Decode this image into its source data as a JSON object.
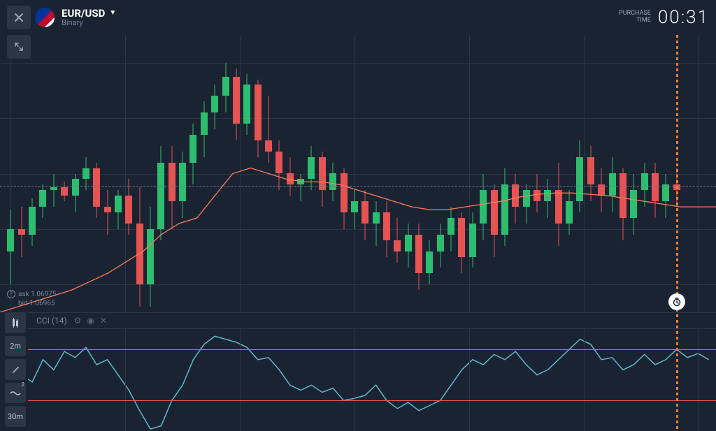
{
  "header": {
    "pair": "EUR/USD",
    "subtype": "Binary",
    "purchase_label_line1": "PURCHASE",
    "purchase_label_line2": "TIME",
    "timer": "00:31"
  },
  "quotes": {
    "ask_label": "ask",
    "ask_value": "1.06975",
    "bid_label": "bid",
    "bid_value": "1.06965"
  },
  "indicator": {
    "label": "CCI (14)",
    "upper_level_y": 0.2,
    "lower_level_y": 0.7,
    "line_color": "#5fb8c9",
    "points": [
      [
        0.0,
        0.54
      ],
      [
        0.015,
        0.32
      ],
      [
        0.03,
        0.45
      ],
      [
        0.045,
        0.52
      ],
      [
        0.06,
        0.3
      ],
      [
        0.075,
        0.4
      ],
      [
        0.09,
        0.22
      ],
      [
        0.105,
        0.28
      ],
      [
        0.12,
        0.18
      ],
      [
        0.135,
        0.35
      ],
      [
        0.15,
        0.3
      ],
      [
        0.165,
        0.45
      ],
      [
        0.18,
        0.6
      ],
      [
        0.195,
        0.8
      ],
      [
        0.21,
        0.98
      ],
      [
        0.225,
        0.95
      ],
      [
        0.24,
        0.7
      ],
      [
        0.255,
        0.55
      ],
      [
        0.27,
        0.3
      ],
      [
        0.285,
        0.15
      ],
      [
        0.3,
        0.07
      ],
      [
        0.315,
        0.1
      ],
      [
        0.33,
        0.13
      ],
      [
        0.345,
        0.18
      ],
      [
        0.36,
        0.3
      ],
      [
        0.375,
        0.28
      ],
      [
        0.39,
        0.4
      ],
      [
        0.405,
        0.55
      ],
      [
        0.42,
        0.6
      ],
      [
        0.435,
        0.55
      ],
      [
        0.45,
        0.62
      ],
      [
        0.465,
        0.58
      ],
      [
        0.48,
        0.7
      ],
      [
        0.495,
        0.68
      ],
      [
        0.51,
        0.65
      ],
      [
        0.525,
        0.55
      ],
      [
        0.54,
        0.7
      ],
      [
        0.555,
        0.78
      ],
      [
        0.57,
        0.72
      ],
      [
        0.585,
        0.8
      ],
      [
        0.6,
        0.75
      ],
      [
        0.615,
        0.7
      ],
      [
        0.63,
        0.55
      ],
      [
        0.645,
        0.4
      ],
      [
        0.66,
        0.3
      ],
      [
        0.675,
        0.35
      ],
      [
        0.69,
        0.25
      ],
      [
        0.705,
        0.3
      ],
      [
        0.72,
        0.22
      ],
      [
        0.735,
        0.35
      ],
      [
        0.75,
        0.45
      ],
      [
        0.765,
        0.4
      ],
      [
        0.78,
        0.3
      ],
      [
        0.795,
        0.2
      ],
      [
        0.81,
        0.1
      ],
      [
        0.825,
        0.15
      ],
      [
        0.84,
        0.3
      ],
      [
        0.855,
        0.28
      ],
      [
        0.87,
        0.4
      ],
      [
        0.885,
        0.35
      ],
      [
        0.9,
        0.25
      ],
      [
        0.915,
        0.35
      ],
      [
        0.93,
        0.3
      ],
      [
        0.945,
        0.2
      ],
      [
        0.96,
        0.28
      ],
      [
        0.975,
        0.24
      ],
      [
        0.99,
        0.3
      ]
    ]
  },
  "toolbar": {
    "chart_type": "candle",
    "timeframe1": "2m",
    "draw": "pencil",
    "wave_badge": "2",
    "timeframe2": "30m"
  },
  "chart": {
    "type": "candlestick",
    "background_color": "#1a2332",
    "grid_color": "#2a3545",
    "up_color": "#2dbd6e",
    "down_color": "#e55353",
    "ma_color": "#ff7b5a",
    "dash_color": "#6a7589",
    "grid_v_x": [
      0.015,
      0.175,
      0.335,
      0.495,
      0.655,
      0.815,
      0.975
    ],
    "grid_h_y": [
      0.1,
      0.3,
      0.5,
      0.7,
      0.9
    ],
    "dash_y": 0.545,
    "time_marker_x": 0.945,
    "time_dot_y": 0.0,
    "ma_points": [
      [
        0.0,
        1.0
      ],
      [
        0.05,
        0.96
      ],
      [
        0.1,
        0.92
      ],
      [
        0.15,
        0.86
      ],
      [
        0.2,
        0.78
      ],
      [
        0.225,
        0.72
      ],
      [
        0.25,
        0.68
      ],
      [
        0.275,
        0.66
      ],
      [
        0.3,
        0.58
      ],
      [
        0.325,
        0.5
      ],
      [
        0.35,
        0.48
      ],
      [
        0.375,
        0.5
      ],
      [
        0.4,
        0.52
      ],
      [
        0.425,
        0.53
      ],
      [
        0.45,
        0.53
      ],
      [
        0.475,
        0.54
      ],
      [
        0.5,
        0.56
      ],
      [
        0.525,
        0.58
      ],
      [
        0.55,
        0.6
      ],
      [
        0.575,
        0.62
      ],
      [
        0.6,
        0.63
      ],
      [
        0.625,
        0.63
      ],
      [
        0.65,
        0.62
      ],
      [
        0.675,
        0.61
      ],
      [
        0.7,
        0.6
      ],
      [
        0.725,
        0.585
      ],
      [
        0.75,
        0.575
      ],
      [
        0.775,
        0.57
      ],
      [
        0.8,
        0.57
      ],
      [
        0.825,
        0.575
      ],
      [
        0.85,
        0.58
      ],
      [
        0.875,
        0.59
      ],
      [
        0.9,
        0.6
      ],
      [
        0.925,
        0.61
      ],
      [
        0.95,
        0.62
      ],
      [
        0.975,
        0.62
      ],
      [
        1.0,
        0.62
      ]
    ],
    "candles": [
      {
        "x": 0.015,
        "o": 0.78,
        "h": 0.63,
        "l": 0.9,
        "c": 0.7,
        "d": "up"
      },
      {
        "x": 0.03,
        "o": 0.7,
        "h": 0.62,
        "l": 0.8,
        "c": 0.72,
        "d": "down"
      },
      {
        "x": 0.045,
        "o": 0.72,
        "h": 0.59,
        "l": 0.76,
        "c": 0.62,
        "d": "up"
      },
      {
        "x": 0.06,
        "o": 0.62,
        "h": 0.54,
        "l": 0.66,
        "c": 0.56,
        "d": "up"
      },
      {
        "x": 0.075,
        "o": 0.56,
        "h": 0.5,
        "l": 0.62,
        "c": 0.55,
        "d": "up"
      },
      {
        "x": 0.09,
        "o": 0.55,
        "h": 0.53,
        "l": 0.6,
        "c": 0.58,
        "d": "down"
      },
      {
        "x": 0.105,
        "o": 0.58,
        "h": 0.5,
        "l": 0.64,
        "c": 0.52,
        "d": "up"
      },
      {
        "x": 0.12,
        "o": 0.52,
        "h": 0.44,
        "l": 0.56,
        "c": 0.48,
        "d": "up"
      },
      {
        "x": 0.135,
        "o": 0.48,
        "h": 0.46,
        "l": 0.66,
        "c": 0.62,
        "d": "down"
      },
      {
        "x": 0.15,
        "o": 0.62,
        "h": 0.56,
        "l": 0.72,
        "c": 0.64,
        "d": "down"
      },
      {
        "x": 0.165,
        "o": 0.64,
        "h": 0.56,
        "l": 0.7,
        "c": 0.58,
        "d": "up"
      },
      {
        "x": 0.18,
        "o": 0.58,
        "h": 0.52,
        "l": 0.72,
        "c": 0.68,
        "d": "down"
      },
      {
        "x": 0.195,
        "o": 0.68,
        "h": 0.55,
        "l": 0.98,
        "c": 0.9,
        "d": "down"
      },
      {
        "x": 0.21,
        "o": 0.9,
        "h": 0.62,
        "l": 0.98,
        "c": 0.7,
        "d": "up"
      },
      {
        "x": 0.225,
        "o": 0.7,
        "h": 0.4,
        "l": 0.74,
        "c": 0.46,
        "d": "up"
      },
      {
        "x": 0.24,
        "o": 0.46,
        "h": 0.4,
        "l": 0.7,
        "c": 0.6,
        "d": "down"
      },
      {
        "x": 0.255,
        "o": 0.6,
        "h": 0.42,
        "l": 0.66,
        "c": 0.46,
        "d": "up"
      },
      {
        "x": 0.27,
        "o": 0.46,
        "h": 0.32,
        "l": 0.54,
        "c": 0.36,
        "d": "up"
      },
      {
        "x": 0.285,
        "o": 0.36,
        "h": 0.24,
        "l": 0.44,
        "c": 0.28,
        "d": "up"
      },
      {
        "x": 0.3,
        "o": 0.28,
        "h": 0.18,
        "l": 0.34,
        "c": 0.22,
        "d": "up"
      },
      {
        "x": 0.315,
        "o": 0.22,
        "h": 0.1,
        "l": 0.28,
        "c": 0.15,
        "d": "up"
      },
      {
        "x": 0.33,
        "o": 0.15,
        "h": 0.12,
        "l": 0.38,
        "c": 0.32,
        "d": "down"
      },
      {
        "x": 0.345,
        "o": 0.32,
        "h": 0.14,
        "l": 0.36,
        "c": 0.18,
        "d": "up"
      },
      {
        "x": 0.36,
        "o": 0.18,
        "h": 0.16,
        "l": 0.44,
        "c": 0.38,
        "d": "down"
      },
      {
        "x": 0.375,
        "o": 0.38,
        "h": 0.22,
        "l": 0.46,
        "c": 0.42,
        "d": "down"
      },
      {
        "x": 0.39,
        "o": 0.42,
        "h": 0.38,
        "l": 0.56,
        "c": 0.5,
        "d": "down"
      },
      {
        "x": 0.405,
        "o": 0.5,
        "h": 0.44,
        "l": 0.58,
        "c": 0.54,
        "d": "down"
      },
      {
        "x": 0.42,
        "o": 0.54,
        "h": 0.5,
        "l": 0.6,
        "c": 0.52,
        "d": "up"
      },
      {
        "x": 0.435,
        "o": 0.52,
        "h": 0.4,
        "l": 0.56,
        "c": 0.44,
        "d": "up"
      },
      {
        "x": 0.45,
        "o": 0.44,
        "h": 0.42,
        "l": 0.62,
        "c": 0.56,
        "d": "down"
      },
      {
        "x": 0.465,
        "o": 0.56,
        "h": 0.46,
        "l": 0.6,
        "c": 0.5,
        "d": "up"
      },
      {
        "x": 0.48,
        "o": 0.5,
        "h": 0.48,
        "l": 0.7,
        "c": 0.64,
        "d": "down"
      },
      {
        "x": 0.495,
        "o": 0.64,
        "h": 0.56,
        "l": 0.7,
        "c": 0.6,
        "d": "up"
      },
      {
        "x": 0.51,
        "o": 0.6,
        "h": 0.56,
        "l": 0.74,
        "c": 0.68,
        "d": "down"
      },
      {
        "x": 0.525,
        "o": 0.68,
        "h": 0.6,
        "l": 0.76,
        "c": 0.64,
        "d": "up"
      },
      {
        "x": 0.54,
        "o": 0.64,
        "h": 0.6,
        "l": 0.8,
        "c": 0.74,
        "d": "down"
      },
      {
        "x": 0.555,
        "o": 0.74,
        "h": 0.66,
        "l": 0.82,
        "c": 0.78,
        "d": "down"
      },
      {
        "x": 0.57,
        "o": 0.78,
        "h": 0.68,
        "l": 0.84,
        "c": 0.72,
        "d": "up"
      },
      {
        "x": 0.585,
        "o": 0.72,
        "h": 0.68,
        "l": 0.92,
        "c": 0.86,
        "d": "down"
      },
      {
        "x": 0.6,
        "o": 0.86,
        "h": 0.74,
        "l": 0.9,
        "c": 0.78,
        "d": "up"
      },
      {
        "x": 0.615,
        "o": 0.78,
        "h": 0.68,
        "l": 0.84,
        "c": 0.72,
        "d": "up"
      },
      {
        "x": 0.63,
        "o": 0.72,
        "h": 0.62,
        "l": 0.78,
        "c": 0.66,
        "d": "up"
      },
      {
        "x": 0.645,
        "o": 0.66,
        "h": 0.64,
        "l": 0.86,
        "c": 0.8,
        "d": "down"
      },
      {
        "x": 0.66,
        "o": 0.8,
        "h": 0.64,
        "l": 0.84,
        "c": 0.68,
        "d": "up"
      },
      {
        "x": 0.675,
        "o": 0.68,
        "h": 0.5,
        "l": 0.74,
        "c": 0.56,
        "d": "up"
      },
      {
        "x": 0.69,
        "o": 0.56,
        "h": 0.54,
        "l": 0.8,
        "c": 0.72,
        "d": "down"
      },
      {
        "x": 0.705,
        "o": 0.72,
        "h": 0.48,
        "l": 0.76,
        "c": 0.54,
        "d": "up"
      },
      {
        "x": 0.72,
        "o": 0.54,
        "h": 0.5,
        "l": 0.68,
        "c": 0.62,
        "d": "down"
      },
      {
        "x": 0.735,
        "o": 0.62,
        "h": 0.54,
        "l": 0.68,
        "c": 0.56,
        "d": "up"
      },
      {
        "x": 0.75,
        "o": 0.56,
        "h": 0.5,
        "l": 0.64,
        "c": 0.6,
        "d": "down"
      },
      {
        "x": 0.765,
        "o": 0.6,
        "h": 0.52,
        "l": 0.66,
        "c": 0.56,
        "d": "up"
      },
      {
        "x": 0.78,
        "o": 0.56,
        "h": 0.46,
        "l": 0.76,
        "c": 0.68,
        "d": "down"
      },
      {
        "x": 0.795,
        "o": 0.68,
        "h": 0.56,
        "l": 0.72,
        "c": 0.6,
        "d": "up"
      },
      {
        "x": 0.81,
        "o": 0.6,
        "h": 0.38,
        "l": 0.64,
        "c": 0.44,
        "d": "up"
      },
      {
        "x": 0.825,
        "o": 0.44,
        "h": 0.4,
        "l": 0.6,
        "c": 0.54,
        "d": "down"
      },
      {
        "x": 0.84,
        "o": 0.54,
        "h": 0.48,
        "l": 0.64,
        "c": 0.58,
        "d": "down"
      },
      {
        "x": 0.855,
        "o": 0.58,
        "h": 0.44,
        "l": 0.64,
        "c": 0.5,
        "d": "up"
      },
      {
        "x": 0.87,
        "o": 0.5,
        "h": 0.48,
        "l": 0.74,
        "c": 0.66,
        "d": "down"
      },
      {
        "x": 0.885,
        "o": 0.66,
        "h": 0.5,
        "l": 0.72,
        "c": 0.56,
        "d": "up"
      },
      {
        "x": 0.9,
        "o": 0.56,
        "h": 0.46,
        "l": 0.62,
        "c": 0.5,
        "d": "up"
      },
      {
        "x": 0.915,
        "o": 0.5,
        "h": 0.46,
        "l": 0.66,
        "c": 0.6,
        "d": "down"
      },
      {
        "x": 0.93,
        "o": 0.6,
        "h": 0.5,
        "l": 0.66,
        "c": 0.54,
        "d": "up"
      },
      {
        "x": 0.945,
        "o": 0.54,
        "h": 0.48,
        "l": 0.62,
        "c": 0.56,
        "d": "down"
      }
    ]
  }
}
